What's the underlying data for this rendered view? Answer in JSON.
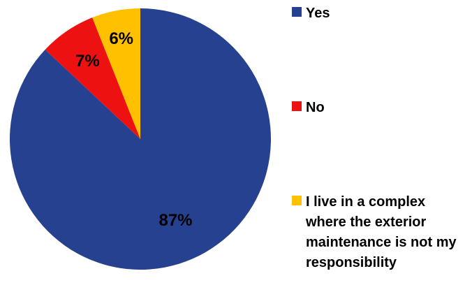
{
  "chart_data": {
    "type": "pie",
    "categories": [
      "Yes",
      "No",
      "I live in a complex where the exterior maintenance is not my responsibility"
    ],
    "values": [
      87,
      7,
      6
    ],
    "labels": [
      "87%",
      "7%",
      "6%"
    ],
    "colors": [
      "#26418f",
      "#ee1111",
      "#ffc000"
    ],
    "legend_position": "right",
    "start_angle": "top, clockwise"
  }
}
